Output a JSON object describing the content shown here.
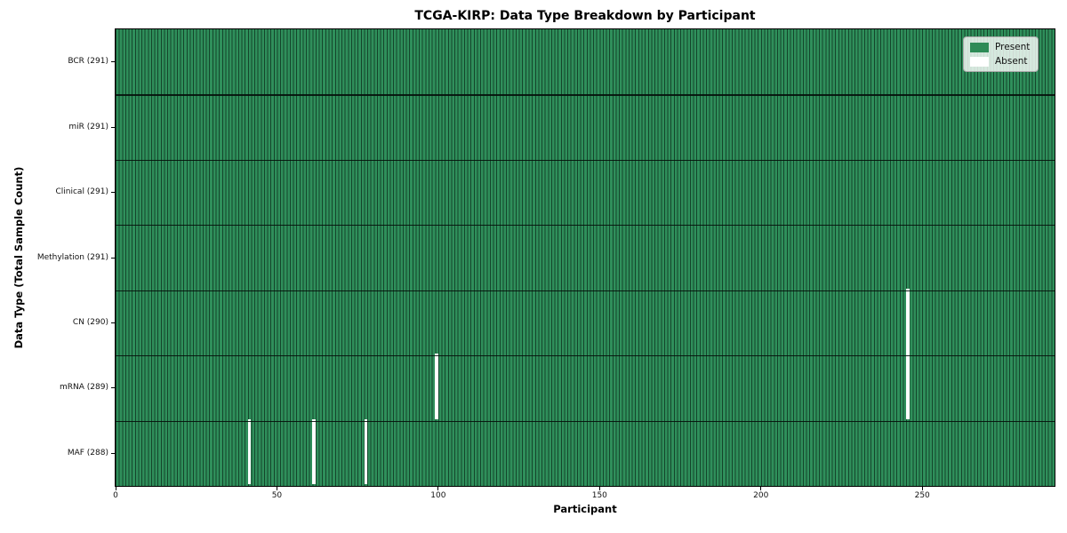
{
  "chart_data": {
    "type": "heatmap",
    "title": "TCGA-KIRP: Data Type Breakdown by Participant",
    "xlabel": "Participant",
    "ylabel": "Data Type (Total Sample Count)",
    "x_ticks": [
      0,
      50,
      100,
      150,
      200,
      250
    ],
    "x_range": [
      0,
      291
    ],
    "n_participants": 291,
    "rows": [
      {
        "label": "BCR (291)",
        "data_type": "BCR",
        "present_count": 291,
        "absent_participants": []
      },
      {
        "label": "miR (291)",
        "data_type": "miR",
        "present_count": 291,
        "absent_participants": []
      },
      {
        "label": "Clinical (291)",
        "data_type": "Clinical",
        "present_count": 291,
        "absent_participants": []
      },
      {
        "label": "Methylation (291)",
        "data_type": "Methylation",
        "present_count": 291,
        "absent_participants": []
      },
      {
        "label": "CN (290)",
        "data_type": "CN",
        "present_count": 290,
        "absent_participants": [
          245
        ]
      },
      {
        "label": "mRNA (289)",
        "data_type": "mRNA",
        "present_count": 289,
        "absent_participants": [
          99,
          245
        ]
      },
      {
        "label": "MAF (288)",
        "data_type": "MAF",
        "present_count": 288,
        "absent_participants": [
          41,
          61,
          77
        ]
      }
    ],
    "legend": {
      "position": "upper right",
      "entries": [
        {
          "label": "Present",
          "color": "#2e8b57"
        },
        {
          "label": "Absent",
          "color": "#ffffff"
        }
      ]
    },
    "colors": {
      "present_face": "#2f8f5b",
      "bar_edge": "#14452b",
      "absent": "#ffffff",
      "grid_line": "#0a0f0c"
    },
    "grid": "row separators on"
  }
}
